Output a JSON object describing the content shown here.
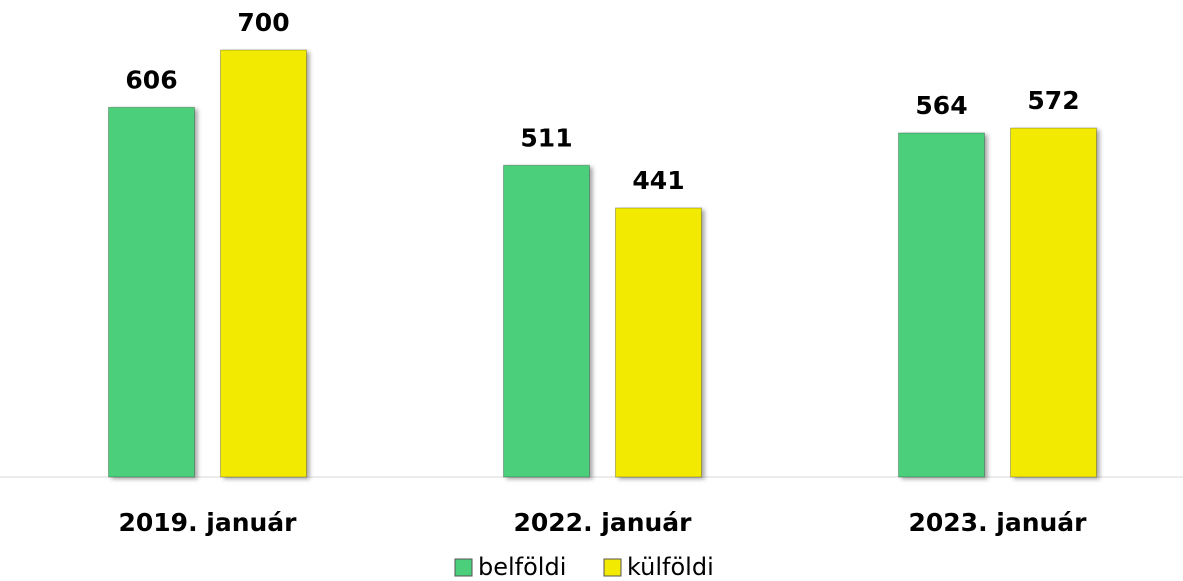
{
  "chart_data": {
    "type": "bar",
    "categories": [
      "2019. január",
      "2022. január",
      "2023. január"
    ],
    "series": [
      {
        "name": "belföldi",
        "color": "#4ccf7a",
        "values": [
          606,
          511,
          564
        ]
      },
      {
        "name": "külföldi",
        "color": "#f2ea00",
        "values": [
          700,
          441,
          572
        ]
      }
    ],
    "ylim": [
      0,
      700
    ]
  }
}
